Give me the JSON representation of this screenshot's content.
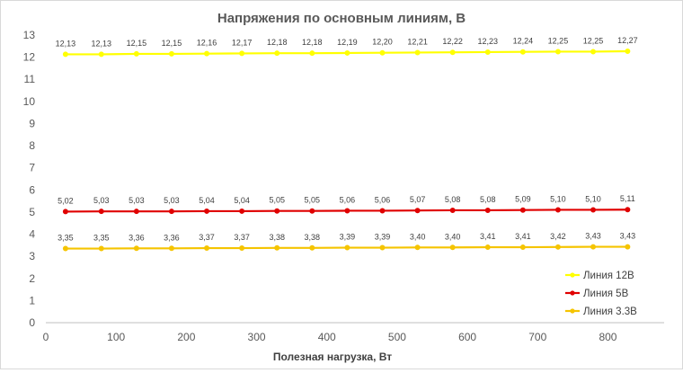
{
  "chart_data": {
    "type": "line",
    "title": "Напряжения по основным линиям, В",
    "xlabel": "Полезная нагрузка, Вт",
    "ylabel": "",
    "xlim": [
      0,
      880
    ],
    "ylim": [
      0,
      13
    ],
    "x_ticks": [
      "0",
      "100",
      "200",
      "300",
      "400",
      "500",
      "600",
      "700",
      "800"
    ],
    "y_ticks": [
      "0",
      "1",
      "2",
      "3",
      "4",
      "5",
      "6",
      "7",
      "8",
      "9",
      "10",
      "11",
      "12",
      "13"
    ],
    "grid": false,
    "legend_position": "bottom-right",
    "x": [
      28,
      79,
      129,
      179,
      229,
      279,
      329,
      379,
      429,
      479,
      529,
      579,
      629,
      679,
      729,
      779,
      828
    ],
    "series": [
      {
        "name": "Линия 12В",
        "color": "#ffff00",
        "values": [
          12.13,
          12.13,
          12.15,
          12.15,
          12.16,
          12.17,
          12.18,
          12.18,
          12.19,
          12.2,
          12.21,
          12.22,
          12.23,
          12.24,
          12.25,
          12.25,
          12.27
        ],
        "labels": [
          "12,13",
          "12,13",
          "12,15",
          "12,15",
          "12,16",
          "12,17",
          "12,18",
          "12,18",
          "12,19",
          "12,20",
          "12,21",
          "12,22",
          "12,23",
          "12,24",
          "12,25",
          "12,25",
          "12,27"
        ]
      },
      {
        "name": "Линия 5В",
        "color": "#e00000",
        "values": [
          5.02,
          5.03,
          5.03,
          5.03,
          5.04,
          5.04,
          5.05,
          5.05,
          5.06,
          5.06,
          5.07,
          5.08,
          5.08,
          5.09,
          5.1,
          5.1,
          5.11
        ],
        "labels": [
          "5,02",
          "5,03",
          "5,03",
          "5,03",
          "5,04",
          "5,04",
          "5,05",
          "5,05",
          "5,06",
          "5,06",
          "5,07",
          "5,08",
          "5,08",
          "5,09",
          "5,10",
          "5,10",
          "5,11"
        ]
      },
      {
        "name": "Линия 3.3В",
        "color": "#f5c400",
        "values": [
          3.35,
          3.35,
          3.36,
          3.36,
          3.37,
          3.37,
          3.38,
          3.38,
          3.39,
          3.39,
          3.4,
          3.4,
          3.41,
          3.41,
          3.42,
          3.43,
          3.43
        ],
        "labels": [
          "3,35",
          "3,35",
          "3,36",
          "3,36",
          "3,37",
          "3,37",
          "3,38",
          "3,38",
          "3,39",
          "3,39",
          "3,40",
          "3,40",
          "3,41",
          "3,41",
          "3,42",
          "3,43",
          "3,43"
        ]
      }
    ]
  }
}
